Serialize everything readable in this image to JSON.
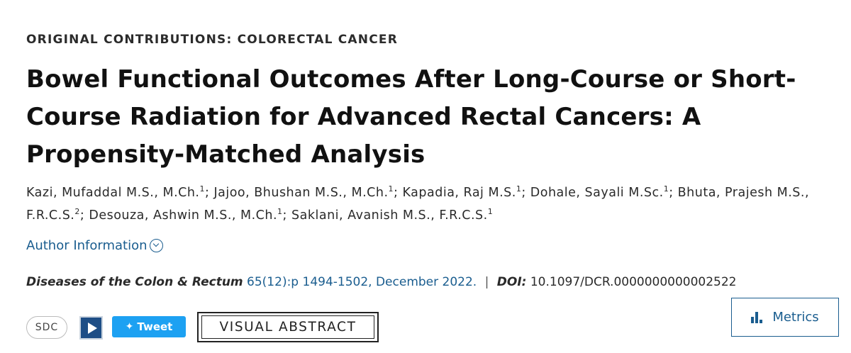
{
  "section_label": "ORIGINAL CONTRIBUTIONS: COLORECTAL CANCER",
  "title": {
    "line1": "Bowel Functional Outcomes After Long-Course or Short-",
    "line2": "Course Radiation for Advanced Rectal Cancers: A",
    "line3": "Propensity-Matched Analysis"
  },
  "authors": {
    "a1": "Kazi, Mufaddal M.S., M.Ch.",
    "a2": "Jajoo, Bhushan M.S., M.Ch.",
    "a3": "Kapadia, Raj M.S.",
    "a4": "Dohale, Sayali M.Sc.",
    "a5": "Bhuta, Prajesh M.S.,",
    "a5b": "F.R.C.S.",
    "a6": "Desouza, Ashwin M.S., M.Ch.",
    "a7": "Saklani, Avanish M.S., F.R.C.S.",
    "sup1": "1",
    "sup2": "2",
    "separator": "; "
  },
  "author_info_label": "Author Information",
  "citation": {
    "journal": "Diseases of the Colon & Rectum",
    "volume_pages": "65(12):p 1494-1502, December 2022.",
    "separator": "|",
    "doi_label": "DOI:",
    "doi_value": "10.1097/DCR.0000000000002522"
  },
  "toolbar": {
    "sdc_label": "SDC",
    "tweet_label": "Tweet",
    "visual_abstract_label": "VISUAL ABSTRACT",
    "metrics_label": "Metrics"
  },
  "icons": {
    "play": "play-icon",
    "twitter": "twitter-bird-icon",
    "metrics": "bar-chart-icon",
    "chevron": "chevron-down-circle-icon"
  },
  "colors": {
    "link": "#1a5d8f",
    "tweet_bg": "#1da1f2",
    "play_bg": "#1e4e86"
  }
}
